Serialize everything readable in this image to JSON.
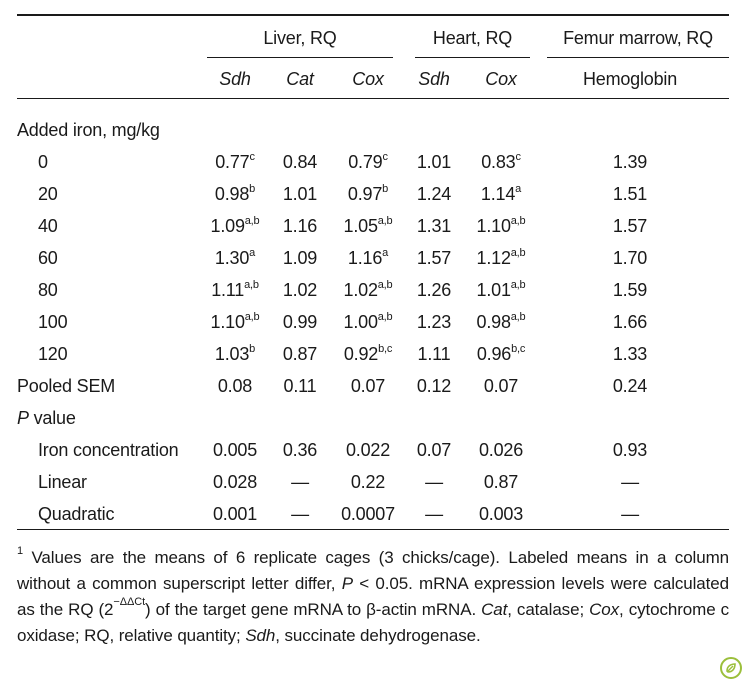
{
  "header": {
    "groups": [
      {
        "label": "Liver, RQ"
      },
      {
        "label": "Heart, RQ"
      },
      {
        "label": "Femur marrow, RQ"
      }
    ],
    "subcols": [
      "Sdh",
      "Cat",
      "Cox",
      "Sdh",
      "Cox",
      "Hemoglobin"
    ]
  },
  "section_iron": {
    "label": "Added iron, mg/kg"
  },
  "rows": [
    {
      "label": "0",
      "cells": [
        {
          "v": "0.77",
          "s": "c"
        },
        {
          "v": "0.84",
          "s": ""
        },
        {
          "v": "0.79",
          "s": "c"
        },
        {
          "v": "1.01",
          "s": ""
        },
        {
          "v": "0.83",
          "s": "c"
        },
        {
          "v": "1.39",
          "s": ""
        }
      ]
    },
    {
      "label": "20",
      "cells": [
        {
          "v": "0.98",
          "s": "b"
        },
        {
          "v": "1.01",
          "s": ""
        },
        {
          "v": "0.97",
          "s": "b"
        },
        {
          "v": "1.24",
          "s": ""
        },
        {
          "v": "1.14",
          "s": "a"
        },
        {
          "v": "1.51",
          "s": ""
        }
      ]
    },
    {
      "label": "40",
      "cells": [
        {
          "v": "1.09",
          "s": "a,b"
        },
        {
          "v": "1.16",
          "s": ""
        },
        {
          "v": "1.05",
          "s": "a,b"
        },
        {
          "v": "1.31",
          "s": ""
        },
        {
          "v": "1.10",
          "s": "a,b"
        },
        {
          "v": "1.57",
          "s": ""
        }
      ]
    },
    {
      "label": "60",
      "cells": [
        {
          "v": "1.30",
          "s": "a"
        },
        {
          "v": "1.09",
          "s": ""
        },
        {
          "v": "1.16",
          "s": "a"
        },
        {
          "v": "1.57",
          "s": ""
        },
        {
          "v": "1.12",
          "s": "a,b"
        },
        {
          "v": "1.70",
          "s": ""
        }
      ]
    },
    {
      "label": "80",
      "cells": [
        {
          "v": "1.11",
          "s": "a,b"
        },
        {
          "v": "1.02",
          "s": ""
        },
        {
          "v": "1.02",
          "s": "a,b"
        },
        {
          "v": "1.26",
          "s": ""
        },
        {
          "v": "1.01",
          "s": "a,b"
        },
        {
          "v": "1.59",
          "s": ""
        }
      ]
    },
    {
      "label": "100",
      "cells": [
        {
          "v": "1.10",
          "s": "a,b"
        },
        {
          "v": "0.99",
          "s": ""
        },
        {
          "v": "1.00",
          "s": "a,b"
        },
        {
          "v": "1.23",
          "s": ""
        },
        {
          "v": "0.98",
          "s": "a,b"
        },
        {
          "v": "1.66",
          "s": ""
        }
      ]
    },
    {
      "label": "120",
      "cells": [
        {
          "v": "1.03",
          "s": "b"
        },
        {
          "v": "0.87",
          "s": ""
        },
        {
          "v": "0.92",
          "s": "b,c"
        },
        {
          "v": "1.11",
          "s": ""
        },
        {
          "v": "0.96",
          "s": "b,c"
        },
        {
          "v": "1.33",
          "s": ""
        }
      ]
    }
  ],
  "pooled_sem": {
    "label": "Pooled SEM",
    "cells": [
      "0.08",
      "0.11",
      "0.07",
      "0.12",
      "0.07",
      "0.24"
    ]
  },
  "p_value": {
    "label_italic": "P",
    "label_rest": " value",
    "rows": [
      {
        "label": "Iron concentration",
        "cells": [
          "0.005",
          "0.36",
          "0.022",
          "0.07",
          "0.026",
          "0.93"
        ]
      },
      {
        "label": "Linear",
        "cells": [
          "0.028",
          "—",
          "0.22",
          "—",
          "0.87",
          "—"
        ]
      },
      {
        "label": "Quadratic",
        "cells": [
          "0.001",
          "—",
          "0.0007",
          "—",
          "0.003",
          "—"
        ]
      }
    ]
  },
  "footnote": {
    "marker": "1",
    "text_1": " Values are the means of 6 replicate cages (3 chicks/cage). Labeled means in a column without a common superscript letter differ, ",
    "p_italic": "P",
    "text_2": " < 0.05. mRNA expression levels were calculated as the RQ (2",
    "exponent": "−ΔΔCt",
    "text_3": ") of the target gene mRNA to β-actin mRNA. ",
    "abbr_cat": "Cat",
    "text_4": ", catalase; ",
    "abbr_cox": "Cox",
    "text_5": ", cytochrome c oxidase; RQ, relative quantity; ",
    "abbr_sdh": "Sdh",
    "text_6": ", succinate dehydrogenase."
  },
  "logo_icon": "journal-logo-icon",
  "accent_color": "#9bbf3b"
}
